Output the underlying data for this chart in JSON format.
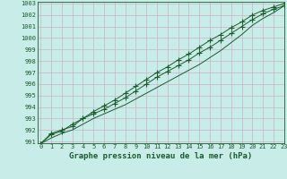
{
  "title": "",
  "xlabel": "Graphe pression niveau de la mer (hPa)",
  "ylabel": "",
  "bg_color": "#c8ede8",
  "grid_color": "#c8b4c8",
  "line_color": "#1a5c2a",
  "marker_color": "#1a5c2a",
  "x": [
    0,
    1,
    2,
    3,
    4,
    5,
    6,
    7,
    8,
    9,
    10,
    11,
    12,
    13,
    14,
    15,
    16,
    17,
    18,
    19,
    20,
    21,
    22,
    23
  ],
  "line1": [
    990.8,
    991.7,
    992.0,
    992.3,
    993.0,
    993.6,
    994.1,
    994.6,
    995.2,
    995.8,
    996.4,
    997.0,
    997.5,
    998.1,
    998.6,
    999.2,
    999.8,
    1000.3,
    1000.9,
    1001.4,
    1002.0,
    1002.4,
    1002.7,
    1003.0
  ],
  "line2": [
    990.8,
    991.6,
    991.9,
    992.5,
    993.0,
    993.4,
    993.8,
    994.3,
    994.8,
    995.4,
    996.0,
    996.6,
    997.1,
    997.6,
    998.1,
    998.7,
    999.2,
    999.8,
    1000.4,
    1001.0,
    1001.6,
    1002.1,
    1002.5,
    1002.8
  ],
  "line3": [
    990.8,
    991.3,
    991.7,
    992.0,
    992.5,
    993.0,
    993.4,
    993.8,
    994.2,
    994.7,
    995.2,
    995.7,
    996.2,
    996.7,
    997.2,
    997.7,
    998.3,
    998.9,
    999.6,
    1000.3,
    1001.1,
    1001.7,
    1002.2,
    1002.8
  ],
  "ylim": [
    991,
    1003
  ],
  "xlim": [
    -0.3,
    23
  ],
  "yticks": [
    991,
    992,
    993,
    994,
    995,
    996,
    997,
    998,
    999,
    1000,
    1001,
    1002,
    1003
  ],
  "xticks": [
    0,
    1,
    2,
    3,
    4,
    5,
    6,
    7,
    8,
    9,
    10,
    11,
    12,
    13,
    14,
    15,
    16,
    17,
    18,
    19,
    20,
    21,
    22,
    23
  ],
  "tick_fontsize": 5.0,
  "xlabel_fontsize": 6.5,
  "marker": "+",
  "marker_size": 4.0,
  "linewidth": 0.7
}
